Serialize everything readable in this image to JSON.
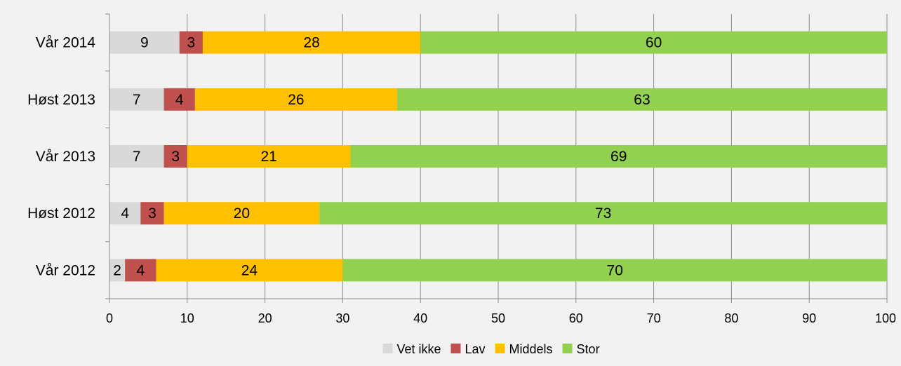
{
  "chart_data": {
    "type": "bar",
    "orientation": "horizontal",
    "stacked": true,
    "categories": [
      "Vår 2014",
      "Høst 2013",
      "Vår 2013",
      "Høst 2012",
      "Vår 2012"
    ],
    "series": [
      {
        "name": "Vet ikke",
        "color": "#d9d9d9",
        "values": [
          9,
          7,
          7,
          4,
          2
        ]
      },
      {
        "name": "Lav",
        "color": "#c0504d",
        "values": [
          3,
          4,
          3,
          3,
          4
        ]
      },
      {
        "name": "Middels",
        "color": "#ffc000",
        "values": [
          28,
          26,
          21,
          20,
          24
        ]
      },
      {
        "name": "Stor",
        "color": "#92d050",
        "values": [
          60,
          63,
          69,
          73,
          70
        ]
      }
    ],
    "xlim": [
      0,
      100
    ],
    "xticks": [
      0,
      10,
      20,
      30,
      40,
      50,
      60,
      70,
      80,
      90,
      100
    ],
    "grid": true,
    "legend_position": "bottom",
    "title": "",
    "xlabel": "",
    "ylabel": ""
  }
}
